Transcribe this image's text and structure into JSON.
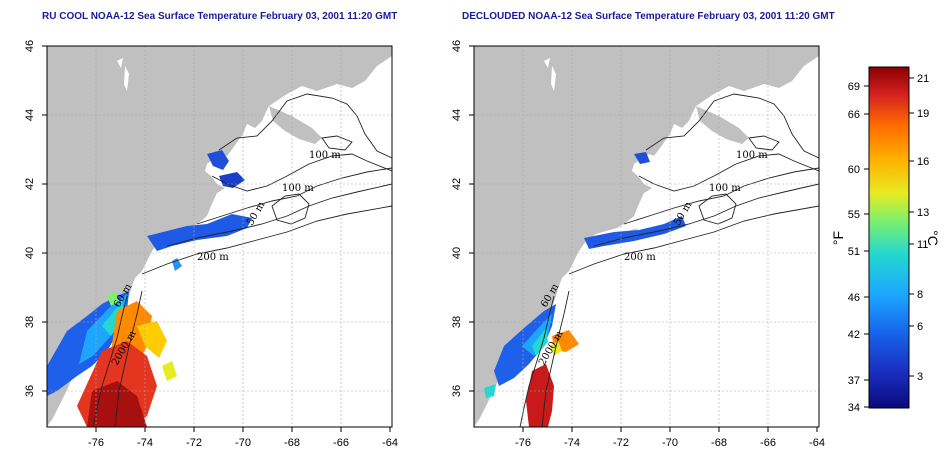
{
  "panels": [
    {
      "title": "RU COOL NOAA-12 Sea Surface Temperature February 03, 2001 11:20 GMT",
      "contour_labels": [
        "100 m",
        "100 m",
        "50 m",
        "200 m",
        "60 m",
        "2000 m"
      ]
    },
    {
      "title": "DECLOUDED NOAA-12 Sea Surface Temperature February 03, 2001 11:20 GMT",
      "contour_labels": [
        "100 m",
        "100 m",
        "50 m",
        "200 m",
        "60 m",
        "2000 m"
      ]
    }
  ],
  "axes": {
    "lon_ticks": [
      "-76",
      "-74",
      "-72",
      "-70",
      "-68",
      "-66",
      "-64"
    ],
    "lat_ticks": [
      "36",
      "38",
      "40",
      "42",
      "44",
      "46"
    ]
  },
  "colorbar": {
    "fahrenheit_label": "°F",
    "celsius_label": "°C",
    "fahrenheit_ticks": [
      "69",
      "66",
      "60",
      "55",
      "51",
      "46",
      "42",
      "37",
      "34"
    ],
    "celsius_ticks": [
      "21",
      "19",
      "16",
      "13",
      "11",
      "8",
      "6",
      "3"
    ],
    "colors": [
      "#8b0000",
      "#d42020",
      "#ff6a00",
      "#ffb000",
      "#e8ea22",
      "#7ef06a",
      "#22d8d0",
      "#1ca6ff",
      "#1664ea",
      "#1a2bbd",
      "#0a0a7c"
    ]
  },
  "colors": {
    "land": "#c0c0c0",
    "title": "#1a1a9c",
    "grid": "#aaaaaa"
  }
}
